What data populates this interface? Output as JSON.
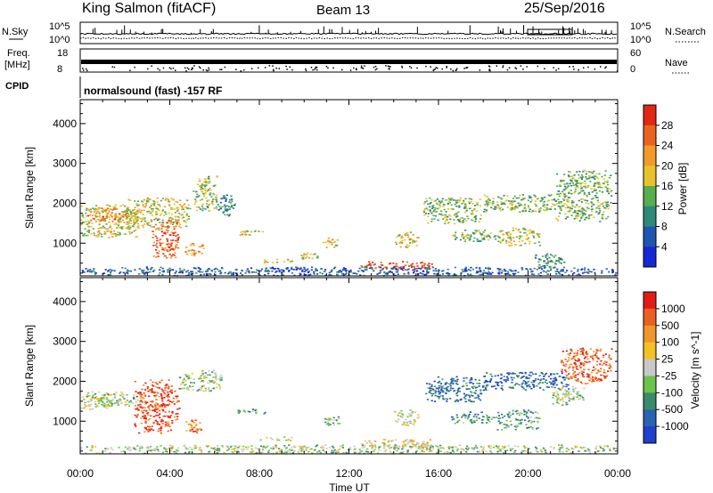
{
  "header": {
    "station": "King Salmon (fitACF)",
    "beam": "Beam 13",
    "date": "25/Sep/2016"
  },
  "strip_panel": {
    "left_label": "N.Sky",
    "right_label": "N.Search",
    "left_ticks": [
      "10^5",
      "10^0"
    ],
    "right_ticks": [
      "10^5",
      "10^0"
    ]
  },
  "freq_panel": {
    "left_label_line1": "Freq.",
    "left_label_line2": "[MHz]",
    "right_label": "Nave",
    "left_ticks": [
      "18",
      "8"
    ],
    "right_ticks": [
      "60",
      "0"
    ]
  },
  "cpid": {
    "label": "CPID",
    "text": "normalsound (fast) -157 RF"
  },
  "chart_data": [
    {
      "type": "heatmap",
      "panel": "power",
      "ylabel": "Slant Range [km]",
      "ylim": [
        180,
        4600
      ],
      "yticks": [
        "1000",
        "2000",
        "3000",
        "4000"
      ],
      "xlim": [
        0,
        24
      ],
      "colorbar_label": "Power [dB]",
      "colorbar_ticks": [
        "4",
        "8",
        "12",
        "16",
        "20",
        "24",
        "28"
      ],
      "colors": [
        "#1428d6",
        "#1f55b0",
        "#2c8a78",
        "#58ad4c",
        "#e8c22e",
        "#f09a2a",
        "#ea6420",
        "#e22812"
      ],
      "echo_regions": [
        {
          "t0": 0.0,
          "t1": 2.6,
          "r0": 1150,
          "r1": 2000,
          "level": 0.55
        },
        {
          "t0": 0.3,
          "t1": 2.2,
          "r0": 1550,
          "r1": 1900,
          "level": 0.75
        },
        {
          "t0": 2.0,
          "t1": 4.9,
          "r0": 1400,
          "r1": 2150,
          "level": 0.55
        },
        {
          "t0": 3.2,
          "t1": 4.4,
          "r0": 650,
          "r1": 1600,
          "level": 0.85
        },
        {
          "t0": 4.6,
          "t1": 5.5,
          "r0": 700,
          "r1": 1050,
          "level": 0.7
        },
        {
          "t0": 5.0,
          "t1": 6.1,
          "r0": 1800,
          "r1": 2700,
          "level": 0.5
        },
        {
          "t0": 6.1,
          "t1": 6.9,
          "r0": 1700,
          "r1": 2250,
          "level": 0.3
        },
        {
          "t0": 7.0,
          "t1": 8.2,
          "r0": 1220,
          "r1": 1330,
          "level": 0.6
        },
        {
          "t0": 8.0,
          "t1": 9.5,
          "r0": 520,
          "r1": 620,
          "level": 0.65
        },
        {
          "t0": 9.8,
          "t1": 10.6,
          "r0": 560,
          "r1": 780,
          "level": 0.55
        },
        {
          "t0": 10.8,
          "t1": 11.5,
          "r0": 880,
          "r1": 1150,
          "level": 0.6
        },
        {
          "t0": 12.5,
          "t1": 15.8,
          "r0": 340,
          "r1": 560,
          "level": 0.9
        },
        {
          "t0": 14.0,
          "t1": 15.1,
          "r0": 900,
          "r1": 1300,
          "level": 0.55
        },
        {
          "t0": 15.3,
          "t1": 18.0,
          "r0": 1500,
          "r1": 2150,
          "level": 0.45
        },
        {
          "t0": 16.5,
          "t1": 18.5,
          "r0": 1050,
          "r1": 1350,
          "level": 0.45
        },
        {
          "t0": 18.0,
          "t1": 22.0,
          "r0": 1800,
          "r1": 2250,
          "level": 0.45
        },
        {
          "t0": 18.5,
          "t1": 20.5,
          "r0": 950,
          "r1": 1400,
          "level": 0.55
        },
        {
          "t0": 20.2,
          "t1": 21.6,
          "r0": 380,
          "r1": 750,
          "level": 0.35
        },
        {
          "t0": 21.2,
          "t1": 23.7,
          "r0": 1550,
          "r1": 2850,
          "level": 0.45
        },
        {
          "t0": 0.0,
          "t1": 24.0,
          "r0": 200,
          "r1": 420,
          "level": 0.2
        }
      ]
    },
    {
      "type": "heatmap",
      "panel": "velocity",
      "ylabel": "Slant Range [km]",
      "ylim": [
        180,
        4600
      ],
      "yticks": [
        "1000",
        "2000",
        "3000",
        "4000"
      ],
      "xlabel": "Time UT",
      "xlim": [
        0,
        24
      ],
      "xticks": [
        "00:00",
        "04:00",
        "08:00",
        "12:00",
        "16:00",
        "20:00",
        "00:00"
      ],
      "colorbar_label": "Velocity [m s^-1]",
      "colorbar_ticks": [
        "1000",
        "500",
        "100",
        "25",
        "-25",
        "-100",
        "-500",
        "-1000"
      ],
      "colors": [
        "#1f3fcc",
        "#2b63b4",
        "#3b8a6a",
        "#6cc44a",
        "#c8c8c8",
        "#f2c126",
        "#f0962a",
        "#ea6020",
        "#e21c14"
      ],
      "echo_regions": [
        {
          "t0": 0.0,
          "t1": 2.7,
          "r0": 1380,
          "r1": 1750,
          "level": 0.45
        },
        {
          "t0": 0.0,
          "t1": 1.4,
          "r0": 1300,
          "r1": 1600,
          "level": 0.5
        },
        {
          "t0": 2.4,
          "t1": 4.4,
          "r0": 700,
          "r1": 2050,
          "level": 0.88
        },
        {
          "t0": 4.4,
          "t1": 6.3,
          "r0": 1750,
          "r1": 2300,
          "level": 0.45
        },
        {
          "t0": 4.6,
          "t1": 5.4,
          "r0": 700,
          "r1": 1050,
          "level": 0.8
        },
        {
          "t0": 7.0,
          "t1": 8.3,
          "r0": 1200,
          "r1": 1330,
          "level": 0.3
        },
        {
          "t0": 8.0,
          "t1": 9.6,
          "r0": 520,
          "r1": 620,
          "level": 0.5
        },
        {
          "t0": 10.8,
          "t1": 11.6,
          "r0": 880,
          "r1": 1150,
          "level": 0.4
        },
        {
          "t0": 12.5,
          "t1": 15.8,
          "r0": 340,
          "r1": 560,
          "level": 0.6
        },
        {
          "t0": 14.0,
          "t1": 15.1,
          "r0": 900,
          "r1": 1300,
          "level": 0.5
        },
        {
          "t0": 15.4,
          "t1": 18.2,
          "r0": 1500,
          "r1": 2150,
          "level": 0.2
        },
        {
          "t0": 16.5,
          "t1": 18.5,
          "r0": 950,
          "r1": 1250,
          "level": 0.3
        },
        {
          "t0": 18.0,
          "t1": 21.8,
          "r0": 1800,
          "r1": 2250,
          "level": 0.15
        },
        {
          "t0": 18.5,
          "t1": 20.5,
          "r0": 800,
          "r1": 1300,
          "level": 0.32
        },
        {
          "t0": 21.4,
          "t1": 23.7,
          "r0": 1950,
          "r1": 2850,
          "level": 0.85
        },
        {
          "t0": 21.0,
          "t1": 22.5,
          "r0": 1400,
          "r1": 1900,
          "level": 0.45
        },
        {
          "t0": 0.0,
          "t1": 24.0,
          "r0": 200,
          "r1": 420,
          "level": 0.45
        }
      ]
    }
  ]
}
